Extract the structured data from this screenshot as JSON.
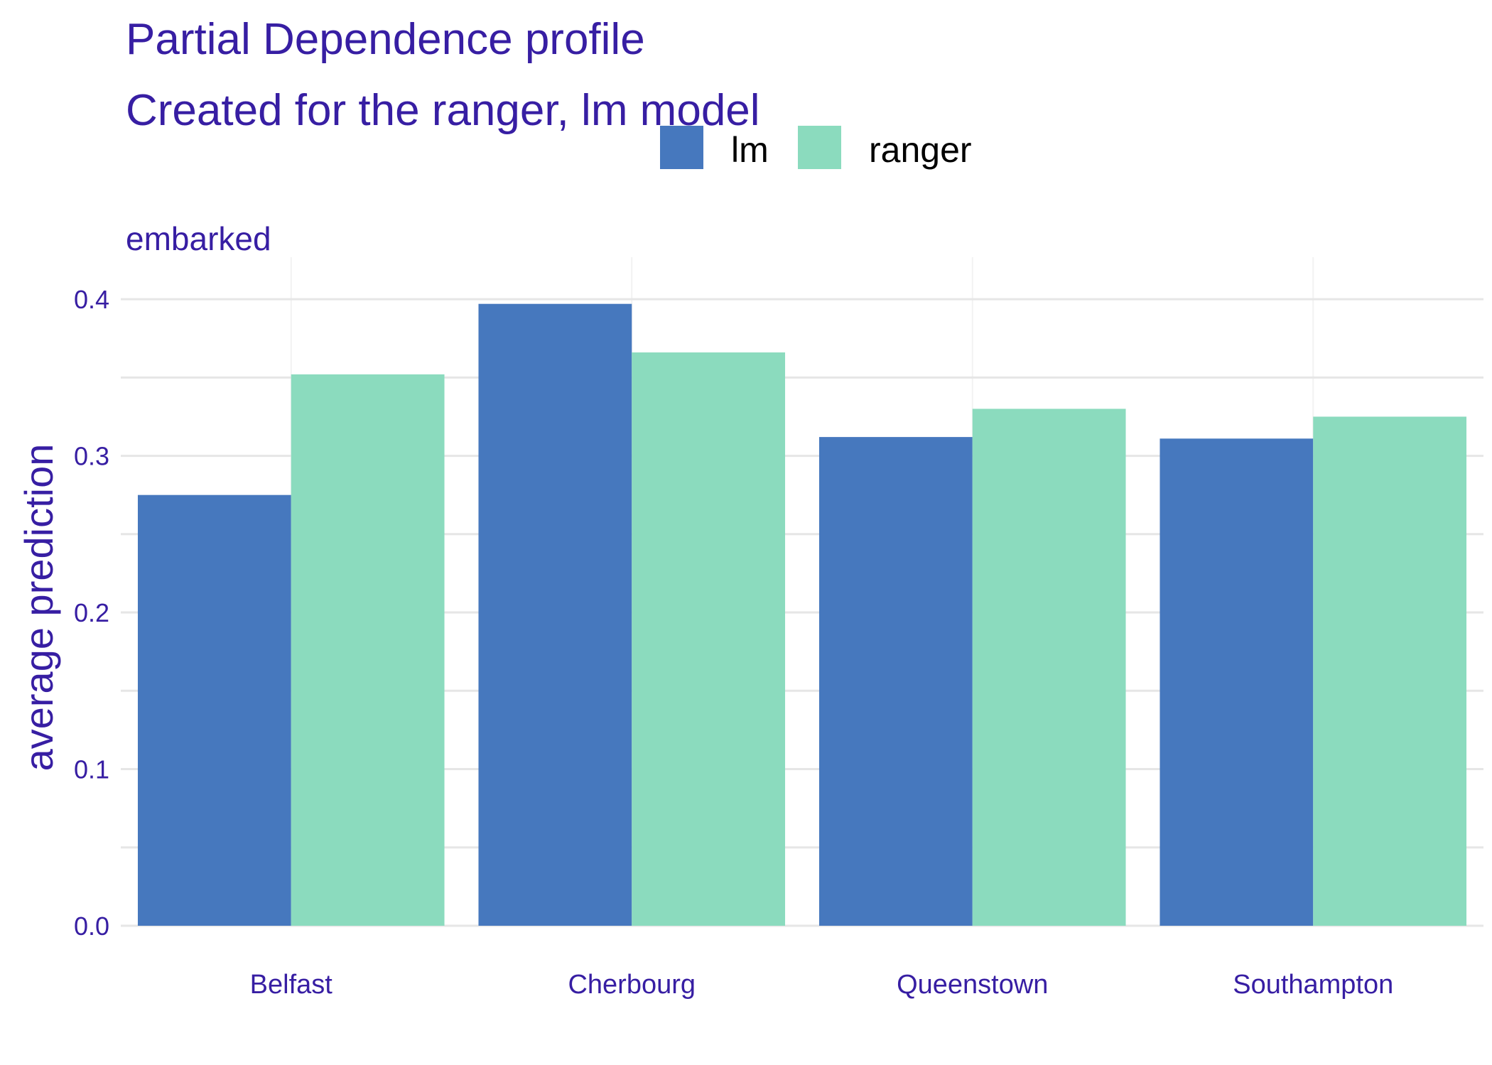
{
  "chart_data": {
    "type": "bar",
    "title": "Partial Dependence profile",
    "subtitle": "Created for the ranger, lm model",
    "facet_label": "embarked",
    "xlabel": "",
    "ylabel": "average prediction",
    "categories": [
      "Belfast",
      "Cherbourg",
      "Queenstown",
      "Southampton"
    ],
    "series": [
      {
        "name": "lm",
        "color": "#4678BE",
        "values": [
          0.275,
          0.397,
          0.312,
          0.311
        ]
      },
      {
        "name": "ranger",
        "color": "#8BDBBE",
        "values": [
          0.352,
          0.366,
          0.33,
          0.325
        ]
      }
    ],
    "ylim": [
      0,
      0.4
    ],
    "yticks": [
      "0.0",
      "0.1",
      "0.2",
      "0.3",
      "0.4"
    ],
    "ytick_values": [
      0,
      0.1,
      0.2,
      0.3,
      0.4
    ],
    "legend_position": "top",
    "grid": true,
    "text_color": "#371EA3",
    "grid_color": "#E6E6E6"
  }
}
